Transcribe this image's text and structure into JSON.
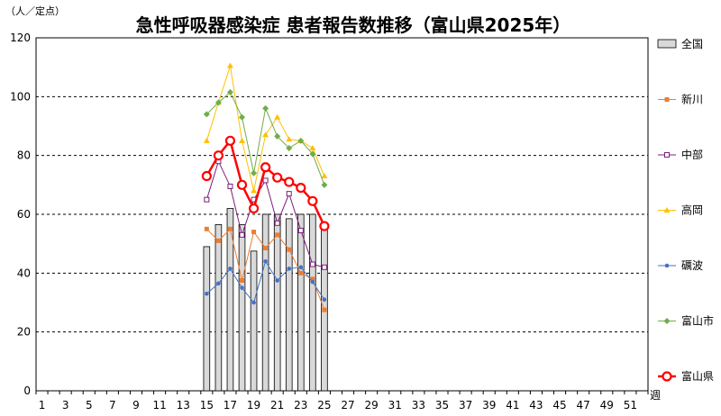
{
  "chart_data": {
    "type": "bar+line",
    "title": "急性呼吸器感染症 患者報告数推移（富山県2025年）",
    "ylabel": "（人／定点）",
    "xlabel": "週",
    "ylim": [
      0,
      120
    ],
    "yticks": [
      0,
      20,
      40,
      60,
      80,
      100,
      120
    ],
    "xlim": [
      1,
      52
    ],
    "xticks": [
      1,
      3,
      5,
      7,
      9,
      11,
      13,
      15,
      17,
      19,
      21,
      23,
      25,
      27,
      29,
      31,
      33,
      35,
      37,
      39,
      41,
      43,
      45,
      47,
      49,
      51
    ],
    "grid": "horizontal dashed",
    "legend_position": "right",
    "bar_series": {
      "name": "全国",
      "color": "#d9d9d9",
      "weeks": [
        15,
        16,
        17,
        18,
        19,
        20,
        21,
        22,
        23,
        24,
        25
      ],
      "values": [
        49,
        56.5,
        62,
        56.5,
        47.5,
        60,
        60,
        58.5,
        60,
        60,
        56
      ]
    },
    "line_series": [
      {
        "name": "新川",
        "color": "#ed7d31",
        "marker": "square-filled",
        "weeks": [
          15,
          16,
          17,
          18,
          19,
          20,
          21,
          22,
          23,
          24,
          25
        ],
        "values": [
          55,
          51,
          55,
          37.5,
          54,
          48.5,
          53,
          48,
          40,
          38,
          27.5
        ]
      },
      {
        "name": "中部",
        "color": "#7b1f7b",
        "marker": "square-open",
        "weeks": [
          15,
          16,
          17,
          18,
          19,
          20,
          21,
          22,
          23,
          24,
          25
        ],
        "values": [
          65,
          78,
          69.5,
          53,
          65,
          71.5,
          57,
          67,
          54.5,
          43,
          42
        ]
      },
      {
        "name": "高岡",
        "color": "#ffc000",
        "marker": "triangle",
        "weeks": [
          15,
          16,
          17,
          18,
          19,
          20,
          21,
          22,
          23,
          24,
          25
        ],
        "values": [
          85,
          98,
          110.5,
          85,
          68,
          87,
          93,
          85.5,
          85,
          82.5,
          73
        ]
      },
      {
        "name": "礪波",
        "color": "#4472c4",
        "marker": "circle-small",
        "weeks": [
          15,
          16,
          17,
          18,
          19,
          20,
          21,
          22,
          23,
          24,
          25
        ],
        "values": [
          33,
          36.5,
          41.5,
          35,
          30,
          44,
          37.5,
          41.5,
          42,
          37,
          31
        ]
      },
      {
        "name": "富山市",
        "color": "#70ad47",
        "marker": "diamond",
        "weeks": [
          15,
          16,
          17,
          18,
          19,
          20,
          21,
          22,
          23,
          24,
          25
        ],
        "values": [
          94,
          98,
          101.5,
          93,
          74,
          96,
          86.5,
          82.5,
          85,
          80.5,
          70
        ]
      },
      {
        "name": "富山県",
        "color": "#ff0000",
        "marker": "circle-open-large",
        "weeks": [
          15,
          16,
          17,
          18,
          19,
          20,
          21,
          22,
          23,
          24,
          25
        ],
        "values": [
          73,
          80,
          85,
          70,
          62,
          76,
          72.5,
          71,
          69,
          64.5,
          56
        ]
      }
    ]
  }
}
